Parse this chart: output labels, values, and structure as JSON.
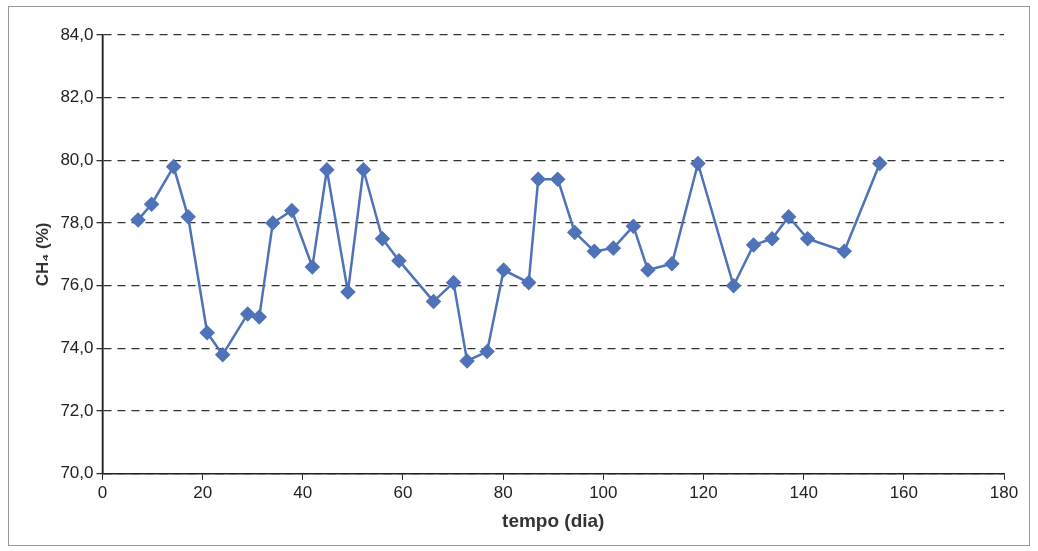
{
  "chart_data": {
    "type": "line",
    "xlabel": "tempo (dia)",
    "ylabel": "CH₄ (%)",
    "xlim": [
      0,
      180
    ],
    "xticks": [
      0,
      20,
      40,
      60,
      80,
      100,
      120,
      140,
      160,
      180
    ],
    "ylim": [
      70,
      84
    ],
    "yticks": [
      {
        "value": 70,
        "label": "70,0"
      },
      {
        "value": 72,
        "label": "72,0"
      },
      {
        "value": 74,
        "label": "74,0"
      },
      {
        "value": 76,
        "label": "76,0"
      },
      {
        "value": 78,
        "label": "78,0"
      },
      {
        "value": 80,
        "label": "80,0"
      },
      {
        "value": 82,
        "label": "82,0"
      },
      {
        "value": 84,
        "label": "84,0"
      }
    ],
    "grid": "y",
    "legend": false,
    "marker": "diamond",
    "line_style": "solid",
    "series": [
      {
        "color": "#4f72b8",
        "x": [
          7.1,
          9.8,
          14.2,
          17.1,
          20.9,
          24,
          29,
          31.3,
          34,
          37.8,
          41.9,
          44.8,
          49,
          52.1,
          55.9,
          59.2,
          66.1,
          70.1,
          72.8,
          76.8,
          80.1,
          85.1,
          87,
          90.9,
          94.3,
          98.2,
          102,
          106,
          108.9,
          113.7,
          118.9,
          126,
          130,
          133.7,
          137,
          140.8,
          148.1,
          155.2
        ],
        "values": [
          78.1,
          78.6,
          79.8,
          78.2,
          74.5,
          73.8,
          75.1,
          75,
          78,
          78.4,
          76.6,
          79.7,
          75.8,
          79.7,
          77.5,
          76.8,
          75.5,
          76.1,
          73.6,
          73.9,
          76.5,
          76.1,
          79.4,
          79.4,
          77.7,
          77.1,
          77.2,
          77.9,
          76.5,
          76.7,
          79.9,
          76,
          77.3,
          77.5,
          78.2,
          77.5,
          77.1,
          79.9
        ]
      }
    ]
  }
}
